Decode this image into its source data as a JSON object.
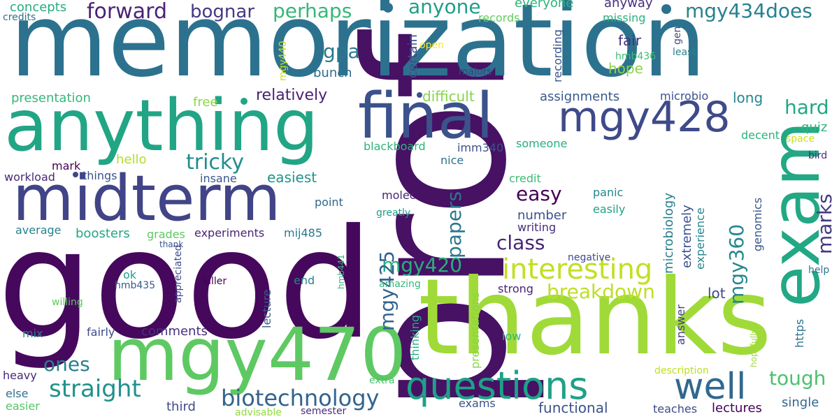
{
  "words": [
    {
      "text": "prof",
      "color": "#471164"
    },
    {
      "text": "good",
      "color": "#46085c"
    },
    {
      "text": "memorization",
      "color": "#2c728e"
    },
    {
      "text": "thanks",
      "color": "#a0da39"
    },
    {
      "text": "anything",
      "color": "#21a585"
    },
    {
      "text": "midterm",
      "color": "#414487"
    },
    {
      "text": "mgy470",
      "color": "#5ec962"
    },
    {
      "text": "final",
      "color": "#3b528b"
    },
    {
      "text": "exam",
      "color": "#22a884"
    },
    {
      "text": "questions",
      "color": "#1fa187"
    },
    {
      "text": "well",
      "color": "#31688e"
    },
    {
      "text": "mgy428",
      "color": "#3e4a89"
    },
    {
      "text": "interesting",
      "color": "#c2df23"
    },
    {
      "text": "straight",
      "color": "#21918c"
    },
    {
      "text": "biotechnology",
      "color": "#33638d"
    },
    {
      "text": "tough",
      "color": "#4ac16d"
    },
    {
      "text": "forward",
      "color": "#482475"
    },
    {
      "text": "bognar",
      "color": "#443983"
    },
    {
      "text": "perhaps",
      "color": "#35b779"
    },
    {
      "text": "anyone",
      "color": "#1f9e89"
    },
    {
      "text": "mgy434does",
      "color": "#26828e"
    },
    {
      "text": "gpa",
      "color": "#2a788e"
    },
    {
      "text": "tricky",
      "color": "#228d8d"
    },
    {
      "text": "hard",
      "color": "#22a785"
    },
    {
      "text": "class",
      "color": "#482576"
    },
    {
      "text": "mgy420",
      "color": "#29af7f"
    },
    {
      "text": "breakdown",
      "color": "#bddf26"
    },
    {
      "text": "mgy425",
      "color": "#32648e"
    },
    {
      "text": "easy",
      "color": "#440154"
    },
    {
      "text": "papers",
      "color": "#2a788e"
    },
    {
      "text": "marks",
      "color": "#443a83"
    },
    {
      "text": "mgy360",
      "color": "#24878e"
    },
    {
      "text": "ones",
      "color": "#277f8e"
    },
    {
      "text": "concepts",
      "color": "#26ad81"
    },
    {
      "text": "credits",
      "color": "#2c728e"
    },
    {
      "text": "presentation",
      "color": "#35b779"
    },
    {
      "text": "relatively",
      "color": "#482173"
    },
    {
      "text": "certain",
      "color": "#3e4c8a"
    },
    {
      "text": "open",
      "color": "#fde725"
    },
    {
      "text": "bunch",
      "color": "#2f6c8e"
    },
    {
      "text": "difficult",
      "color": "#86d549"
    },
    {
      "text": "assignments",
      "color": "#38598c"
    },
    {
      "text": "fair",
      "color": "#46307e"
    },
    {
      "text": "hope",
      "color": "#8bd646"
    },
    {
      "text": "microbio",
      "color": "#3c508b"
    },
    {
      "text": "long",
      "color": "#24868e"
    },
    {
      "text": "quiz",
      "color": "#2fb47c"
    },
    {
      "text": "decent",
      "color": "#2db27d"
    },
    {
      "text": "space",
      "color": "#c8e020"
    },
    {
      "text": "bird",
      "color": "#472c7a"
    },
    {
      "text": "everyone",
      "color": "#2eb37c"
    },
    {
      "text": "records",
      "color": "#65cb5e"
    },
    {
      "text": "anyway",
      "color": "#46307e"
    },
    {
      "text": "missing",
      "color": "#2db27d"
    },
    {
      "text": "gen",
      "color": "#3f4889"
    },
    {
      "text": "hmb436",
      "color": "#3dbc74"
    },
    {
      "text": "least",
      "color": "#25838e"
    },
    {
      "text": "recording",
      "color": "#3b528b"
    },
    {
      "text": "majors",
      "color": "#433e85"
    },
    {
      "text": "mgy440",
      "color": "#c5e021"
    },
    {
      "text": "free",
      "color": "#8bd646"
    },
    {
      "text": "hello",
      "color": "#b0dd2f"
    },
    {
      "text": "mark",
      "color": "#440154"
    },
    {
      "text": "workload",
      "color": "#482878"
    },
    {
      "text": "things",
      "color": "#3b528b"
    },
    {
      "text": "insane",
      "color": "#38598c"
    },
    {
      "text": "easiest",
      "color": "#1f958b"
    },
    {
      "text": "blackboard",
      "color": "#2fb47c"
    },
    {
      "text": "imm340",
      "color": "#3b528b"
    },
    {
      "text": "someone",
      "color": "#28ae80"
    },
    {
      "text": "nice",
      "color": "#2c728e"
    },
    {
      "text": "credit",
      "color": "#3dbc74"
    },
    {
      "text": "molec",
      "color": "#482475"
    },
    {
      "text": "panic",
      "color": "#23888e"
    },
    {
      "text": "easily",
      "color": "#20a386"
    },
    {
      "text": "number",
      "color": "#3b528b"
    },
    {
      "text": "writing",
      "color": "#472d7b"
    },
    {
      "text": "microbiology",
      "color": "#277f8e"
    },
    {
      "text": "extremely",
      "color": "#3c508b"
    },
    {
      "text": "experience",
      "color": "#25848e"
    },
    {
      "text": "genomics",
      "color": "#39568c"
    },
    {
      "text": "point",
      "color": "#31688e"
    },
    {
      "text": "greatly",
      "color": "#1f9e89"
    },
    {
      "text": "average",
      "color": "#26828e"
    },
    {
      "text": "boosters",
      "color": "#21a685"
    },
    {
      "text": "grades",
      "color": "#5ec962"
    },
    {
      "text": "experiments",
      "color": "#482475"
    },
    {
      "text": "mij485",
      "color": "#2a788e"
    },
    {
      "text": "thank",
      "color": "#39568c"
    },
    {
      "text": "appreciated",
      "color": "#3e4a89"
    },
    {
      "text": "killer",
      "color": "#440154"
    },
    {
      "text": "hmb441",
      "color": "#31b57b"
    },
    {
      "text": "lecture",
      "color": "#38598c"
    },
    {
      "text": "negative",
      "color": "#3e4a89"
    },
    {
      "text": "ok",
      "color": "#1f9e89"
    },
    {
      "text": "hmb435",
      "color": "#38598c"
    },
    {
      "text": "end",
      "color": "#26828e"
    },
    {
      "text": "amazing",
      "color": "#35b779"
    },
    {
      "text": "presentations",
      "color": "#86d549"
    },
    {
      "text": "strong",
      "color": "#482475"
    },
    {
      "text": "lot",
      "color": "#3e4a89"
    },
    {
      "text": "help",
      "color": "#2a788e"
    },
    {
      "text": "answer",
      "color": "#433e85"
    },
    {
      "text": "https",
      "color": "#2c728e"
    },
    {
      "text": "willing",
      "color": "#5ec962"
    },
    {
      "text": "mix",
      "color": "#25848e"
    },
    {
      "text": "fairly",
      "color": "#3e4a89"
    },
    {
      "text": "comments",
      "color": "#46307e"
    },
    {
      "text": "thinking",
      "color": "#26ad81"
    },
    {
      "text": "low",
      "color": "#2fb47c"
    },
    {
      "text": "hopefully",
      "color": "#a0da39"
    },
    {
      "text": "description",
      "color": "#bddf26"
    },
    {
      "text": "heavy",
      "color": "#482878"
    },
    {
      "text": "extra",
      "color": "#4ac16d"
    },
    {
      "text": "else",
      "color": "#2c728e"
    },
    {
      "text": "easier",
      "color": "#54c568"
    },
    {
      "text": "third",
      "color": "#3e4a89"
    },
    {
      "text": "advisable",
      "color": "#95d840"
    },
    {
      "text": "semester",
      "color": "#472d7b"
    },
    {
      "text": "exams",
      "color": "#3b528b"
    },
    {
      "text": "functional",
      "color": "#3b528b"
    },
    {
      "text": "teaches",
      "color": "#3e4a89"
    },
    {
      "text": "lectures",
      "color": "#440154"
    },
    {
      "text": "single",
      "color": "#31688e"
    }
  ]
}
